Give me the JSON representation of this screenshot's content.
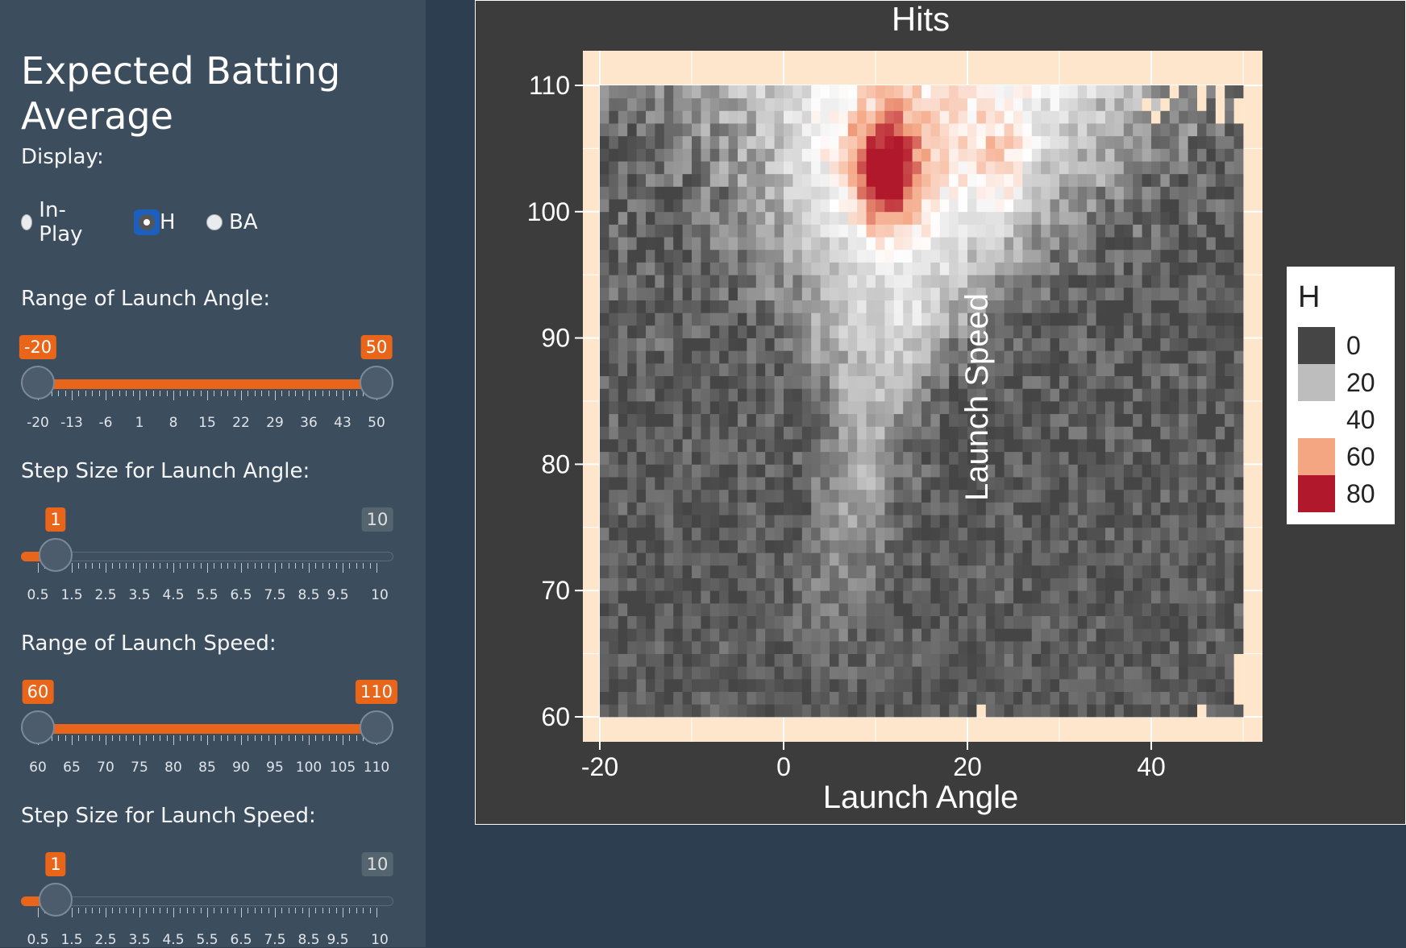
{
  "sidebar": {
    "title": "Expected Batting Average",
    "display_label": "Display:",
    "display_options": [
      "In-Play",
      "H",
      "BA"
    ],
    "display_selected": "H",
    "angle_range": {
      "label": "Range of Launch Angle:",
      "min": -20,
      "max": 50,
      "low": -20,
      "high": 50,
      "tick_labels": [
        "-20",
        "-13",
        "-6",
        "1",
        "8",
        "15",
        "22",
        "29",
        "36",
        "43",
        "50"
      ],
      "low_label": "-20",
      "high_label": "50"
    },
    "angle_step": {
      "label": "Step Size for Launch Angle:",
      "min": 0.5,
      "max": 10,
      "value": 1,
      "tick_labels": [
        "0.5",
        "1.5",
        "2.5",
        "3.5",
        "4.5",
        "5.5",
        "6.5",
        "7.5",
        "8.5",
        "9.5",
        "10"
      ],
      "value_label": "1",
      "max_label": "10"
    },
    "speed_range": {
      "label": "Range of Launch Speed:",
      "min": 60,
      "max": 110,
      "low": 60,
      "high": 110,
      "tick_labels": [
        "60",
        "65",
        "70",
        "75",
        "80",
        "85",
        "90",
        "95",
        "100",
        "105",
        "110"
      ],
      "low_label": "60",
      "high_label": "110"
    },
    "speed_step": {
      "label": "Step Size for Launch Speed:",
      "min": 0.5,
      "max": 10,
      "value": 1,
      "tick_labels": [
        "0.5",
        "1.5",
        "2.5",
        "3.5",
        "4.5",
        "5.5",
        "6.5",
        "7.5",
        "8.5",
        "9.5",
        "10"
      ],
      "value_label": "1",
      "max_label": "10"
    }
  },
  "chart_data": {
    "type": "heatmap",
    "title": "Hits",
    "xlabel": "Launch Angle",
    "ylabel": "Launch Speed",
    "xlim": [
      -20,
      50
    ],
    "ylim": [
      60,
      110
    ],
    "x_ticks": [
      -20,
      0,
      20,
      40
    ],
    "y_ticks": [
      60,
      70,
      80,
      90,
      100,
      110
    ],
    "legend": {
      "title": "H",
      "position": "right",
      "entries": [
        {
          "label": "0",
          "color": "#454545"
        },
        {
          "label": "20",
          "color": "#bdbdbd"
        },
        {
          "label": "40",
          "color": "#ffffff"
        },
        {
          "label": "60",
          "color": "#f4a582"
        },
        {
          "label": "80",
          "color": "#b2182b"
        }
      ]
    },
    "hotspots": [
      {
        "launch_angle": 11,
        "launch_speed": 103,
        "hits": 85
      },
      {
        "launch_angle": 24,
        "launch_speed": 104,
        "hits": 60
      },
      {
        "launch_angle": 15,
        "launch_speed": 90,
        "hits": 45
      },
      {
        "launch_angle": 20,
        "launch_speed": 80,
        "hits": 35
      }
    ],
    "colors": {
      "panel_bg": "#3c3c3c",
      "plot_bg": "#fde6cc",
      "na_fill": "#fde6cc"
    }
  }
}
